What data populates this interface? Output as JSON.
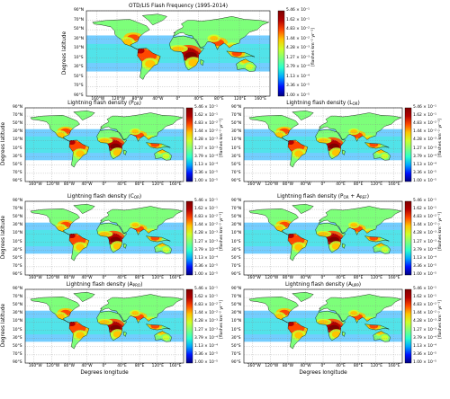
{
  "chart_data": [
    {
      "type": "heatmap",
      "title": "OTD/LIS Flash Frequency (1995-2014)",
      "ylabel": "Degrees latitude",
      "xlabel": "",
      "lat_ticks": [
        "90°N",
        "70°N",
        "50°N",
        "30°N",
        "10°N",
        "10°S",
        "30°S",
        "50°S",
        "70°S",
        "90°S"
      ],
      "lon_ticks": [
        "160°W",
        "120°W",
        "80°W",
        "40°W",
        "0°",
        "40°E",
        "80°E",
        "120°E",
        "160°E"
      ],
      "colorbar_label": "[flashes km⁻² yr⁻¹]",
      "colorbar_ticks": [
        "5.46 × 10⁻¹",
        "1.62 × 10⁻¹",
        "4.83 × 10⁻²",
        "1.44 × 10⁻²",
        "4.28 × 10⁻³",
        "1.27 × 10⁻³",
        "3.79 × 10⁻⁴",
        "1.13 × 10⁻⁴",
        "3.36 × 10⁻⁵",
        "1.00 × 10⁻⁵"
      ],
      "colorbar_range": [
        1e-05,
        0.546
      ],
      "colorbar_scale": "log"
    },
    {
      "type": "heatmap",
      "title": "Lightning flash density (P_OR)",
      "ylabel": "Degrees latitude",
      "xlabel": "",
      "lat_ticks": [
        "90°N",
        "70°N",
        "50°N",
        "30°N",
        "10°N",
        "10°S",
        "30°S",
        "50°S",
        "70°S",
        "90°S"
      ],
      "lon_ticks": [
        "160°W",
        "120°W",
        "80°W",
        "40°W",
        "0°",
        "40°E",
        "80°E",
        "120°E",
        "160°E"
      ],
      "colorbar_label": "[flashes km⁻² yr⁻¹]",
      "colorbar_ticks": [
        "5.46 × 10⁻¹",
        "1.62 × 10⁻¹",
        "4.83 × 10⁻²",
        "1.44 × 10⁻²",
        "4.28 × 10⁻³",
        "1.27 × 10⁻³",
        "3.79 × 10⁻⁴",
        "1.13 × 10⁻⁴",
        "3.36 × 10⁻⁵",
        "1.00 × 10⁻⁵"
      ],
      "colorbar_range": [
        1e-05,
        0.546
      ],
      "colorbar_scale": "log"
    },
    {
      "type": "heatmap",
      "title": "Lightning flash density (L_OR)",
      "ylabel": "",
      "xlabel": "",
      "lat_ticks": [
        "90°N",
        "70°N",
        "50°N",
        "30°N",
        "10°N",
        "10°S",
        "30°S",
        "50°S",
        "70°S",
        "90°S"
      ],
      "lon_ticks": [
        "160°W",
        "120°W",
        "80°W",
        "40°W",
        "0°",
        "40°E",
        "80°E",
        "120°E",
        "160°E"
      ],
      "colorbar_label": "[flashes km⁻² yr⁻¹]",
      "colorbar_ticks": [
        "5.46 × 10⁻¹",
        "1.62 × 10⁻¹",
        "4.83 × 10⁻²",
        "1.44 × 10⁻²",
        "4.28 × 10⁻³",
        "1.27 × 10⁻³",
        "3.79 × 10⁻⁴",
        "1.13 × 10⁻⁴",
        "3.36 × 10⁻⁵",
        "1.00 × 10⁻⁵"
      ],
      "colorbar_range": [
        1e-05,
        0.546
      ],
      "colorbar_scale": "log"
    },
    {
      "type": "heatmap",
      "title": "Lightning flash density (C_OR)",
      "ylabel": "Degrees latitude",
      "xlabel": "",
      "lat_ticks": [
        "90°N",
        "70°N",
        "50°N",
        "30°N",
        "10°N",
        "10°S",
        "30°S",
        "50°S",
        "70°S",
        "90°S"
      ],
      "lon_ticks": [
        "160°W",
        "120°W",
        "80°W",
        "40°W",
        "0°",
        "40°E",
        "80°E",
        "120°E",
        "160°E"
      ],
      "colorbar_label": "[flashes km⁻² yr⁻¹]",
      "colorbar_ticks": [
        "5.46 × 10⁻¹",
        "1.62 × 10⁻¹",
        "4.83 × 10⁻²",
        "1.44 × 10⁻²",
        "4.28 × 10⁻³",
        "1.27 × 10⁻³",
        "3.79 × 10⁻⁴",
        "1.13 × 10⁻⁴",
        "3.36 × 10⁻⁵",
        "1.00 × 10⁻⁵"
      ],
      "colorbar_range": [
        1e-05,
        0.546
      ],
      "colorbar_scale": "log"
    },
    {
      "type": "heatmap",
      "title": "Lightning flash density (P_OR + A_REF)",
      "ylabel": "",
      "xlabel": "",
      "lat_ticks": [
        "90°N",
        "70°N",
        "50°N",
        "30°N",
        "10°N",
        "10°S",
        "30°S",
        "50°S",
        "70°S",
        "90°S"
      ],
      "lon_ticks": [
        "160°W",
        "120°W",
        "80°W",
        "40°W",
        "0°",
        "40°E",
        "80°E",
        "120°E",
        "160°E"
      ],
      "colorbar_label": "[flashes km⁻² yr⁻¹]",
      "colorbar_ticks": [
        "5.46 × 10⁻¹",
        "1.62 × 10⁻¹",
        "4.83 × 10⁻²",
        "1.44 × 10⁻²",
        "4.28 × 10⁻³",
        "1.27 × 10⁻³",
        "3.79 × 10⁻⁴",
        "1.13 × 10⁻⁴",
        "3.36 × 10⁻⁵",
        "1.00 × 10⁻⁵"
      ],
      "colorbar_range": [
        1e-05,
        0.546
      ],
      "colorbar_scale": "log"
    },
    {
      "type": "heatmap",
      "title": "Lightning flash density (A_PRO)",
      "ylabel": "Degrees latitude",
      "xlabel": "Degrees longitude",
      "lat_ticks": [
        "90°N",
        "70°N",
        "50°N",
        "30°N",
        "10°N",
        "10°S",
        "30°S",
        "50°S",
        "70°S",
        "90°S"
      ],
      "lon_ticks": [
        "160°W",
        "120°W",
        "80°W",
        "40°W",
        "0°",
        "40°E",
        "80°E",
        "120°E",
        "160°E"
      ],
      "colorbar_label": "[flashes km⁻² yr⁻¹]",
      "colorbar_ticks": [
        "5.46 × 10⁻¹",
        "1.62 × 10⁻¹",
        "4.83 × 10⁻²",
        "1.44 × 10⁻²",
        "4.28 × 10⁻³",
        "1.27 × 10⁻³",
        "3.79 × 10⁻⁴",
        "1.13 × 10⁻⁴",
        "3.36 × 10⁻⁵",
        "1.00 × 10⁻⁵"
      ],
      "colorbar_range": [
        1e-05,
        0.546
      ],
      "colorbar_scale": "log"
    },
    {
      "type": "heatmap",
      "title": "Lightning flash density (A_UPP)",
      "ylabel": "",
      "xlabel": "Degrees longitude",
      "lat_ticks": [
        "90°N",
        "70°N",
        "50°N",
        "30°N",
        "10°N",
        "10°S",
        "30°S",
        "50°S",
        "70°S",
        "90°S"
      ],
      "lon_ticks": [
        "160°W",
        "120°W",
        "80°W",
        "40°W",
        "0°",
        "40°E",
        "80°E",
        "120°E",
        "160°E"
      ],
      "colorbar_label": "[flashes km⁻² yr⁻¹]",
      "colorbar_ticks": [
        "5.46 × 10⁻¹",
        "1.62 × 10⁻¹",
        "4.83 × 10⁻²",
        "1.44 × 10⁻²",
        "4.28 × 10⁻³",
        "1.27 × 10⁻³",
        "3.79 × 10⁻⁴",
        "1.13 × 10⁻⁴",
        "3.36 × 10⁻⁵",
        "1.00 × 10⁻⁵"
      ],
      "colorbar_range": [
        1e-05,
        0.546
      ],
      "colorbar_scale": "log"
    }
  ],
  "colors": {
    "ocean_background": "#ffffff",
    "colormap": [
      "#00007f",
      "#0010ff",
      "#00a4ff",
      "#29ffce",
      "#7dff7a",
      "#ceff29",
      "#ffc400",
      "#ff4700",
      "#b30000",
      "#7f0000"
    ],
    "coastline": "#000000"
  }
}
